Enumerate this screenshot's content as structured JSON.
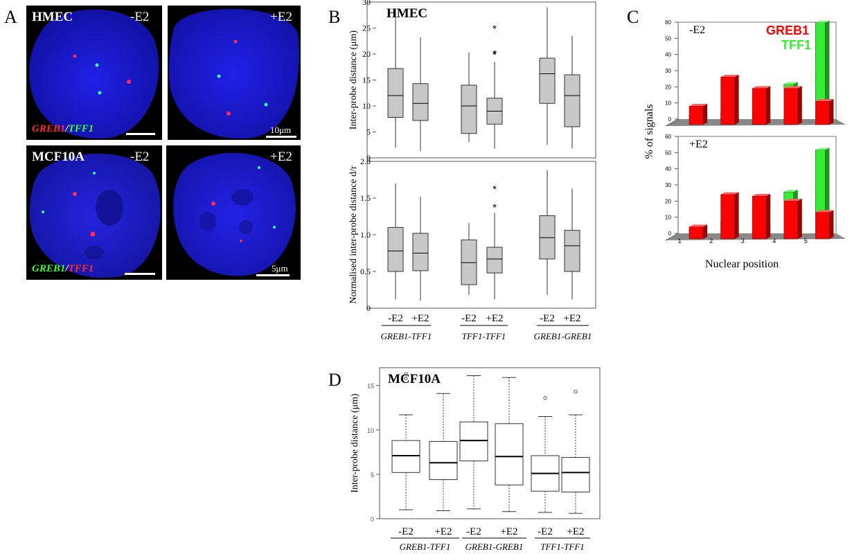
{
  "panel_letters": {
    "a": "A",
    "b": "B",
    "c": "C",
    "d": "D"
  },
  "panel_a": {
    "images": [
      {
        "cell": "HMEC",
        "condition": "-E2",
        "probe_first": "GREB1",
        "probe_sep": "/",
        "probe_second": "TFF1",
        "scale": ""
      },
      {
        "cell": "",
        "condition": "+E2",
        "probe_first": "",
        "probe_sep": "",
        "probe_second": "",
        "scale": "10μm"
      },
      {
        "cell": "MCF10A",
        "condition": "-E2",
        "probe_first": "GREB1",
        "probe_sep": "/",
        "probe_second": "TFF1",
        "scale": ""
      },
      {
        "cell": "",
        "condition": "+E2",
        "probe_first": "",
        "probe_sep": "",
        "probe_second": "",
        "scale": "5μm"
      }
    ],
    "colors": {
      "nucleus": "#1a1ad8",
      "red": "#ff2a55",
      "green": "#33ff99"
    }
  },
  "chart_data": [
    {
      "id": "B-top",
      "type": "boxplot",
      "title": "HMEC",
      "ylabel": "Inter-probe distance (μm)",
      "ylim": [
        0,
        30
      ],
      "yticks": [
        0,
        5,
        10,
        15,
        20,
        25,
        30
      ],
      "box_color": "#c8c8c8",
      "boxes": [
        {
          "label": "-E2",
          "group": "GREB1-TFF1",
          "min": 2,
          "q1": 7.8,
          "median": 12,
          "q3": 17.2,
          "max": 28.5,
          "outliers": []
        },
        {
          "label": "+E2",
          "group": "GREB1-TFF1",
          "min": 1.3,
          "q1": 7.2,
          "median": 10.5,
          "q3": 14.3,
          "max": 23.2,
          "outliers": []
        },
        {
          "label": "-E2",
          "group": "TFF1-TFF1",
          "min": 3,
          "q1": 4.7,
          "median": 10,
          "q3": 14,
          "max": 20.3,
          "outliers": []
        },
        {
          "label": "+E2",
          "group": "TFF1-TFF1",
          "min": 1.8,
          "q1": 6.5,
          "median": 9,
          "q3": 11.5,
          "max": 18.5,
          "outliers": [
            20,
            20.2,
            25
          ]
        },
        {
          "label": "-E2",
          "group": "GREB1-GREB1",
          "min": 2.5,
          "q1": 10.5,
          "median": 16.2,
          "q3": 19.2,
          "max": 29,
          "outliers": []
        },
        {
          "label": "+E2",
          "group": "GREB1-GREB1",
          "min": 1.8,
          "q1": 6,
          "median": 12,
          "q3": 16,
          "max": 23.5,
          "outliers": []
        }
      ]
    },
    {
      "id": "B-bottom",
      "type": "boxplot",
      "title": "",
      "ylabel": "Normalised inter-probe distance d/r",
      "ylim": [
        0,
        2.0
      ],
      "yticks": [
        0,
        0.5,
        1.0,
        1.5,
        2.0
      ],
      "ytick_labels": [
        "0",
        "0.5",
        "1.0",
        "1.5",
        "2.0"
      ],
      "box_color": "#c8c8c8",
      "xlabels": [
        "-E2",
        "+E2",
        "-E2",
        "+E2",
        "-E2",
        "+E2"
      ],
      "groups": [
        "GREB1-TFF1",
        "TFF1-TFF1",
        "GREB1-GREB1"
      ],
      "boxes": [
        {
          "min": 0.12,
          "q1": 0.5,
          "median": 0.78,
          "q3": 1.1,
          "max": 1.7,
          "outliers": []
        },
        {
          "min": 0.1,
          "q1": 0.51,
          "median": 0.75,
          "q3": 1.02,
          "max": 1.52,
          "outliers": []
        },
        {
          "min": 0.18,
          "q1": 0.32,
          "median": 0.62,
          "q3": 0.93,
          "max": 1.16,
          "outliers": []
        },
        {
          "min": 0.12,
          "q1": 0.48,
          "median": 0.67,
          "q3": 0.83,
          "max": 1.3,
          "outliers": [
            1.38,
            1.63
          ]
        },
        {
          "min": 0.18,
          "q1": 0.67,
          "median": 0.96,
          "q3": 1.26,
          "max": 1.88,
          "outliers": []
        },
        {
          "min": 0.12,
          "q1": 0.5,
          "median": 0.85,
          "q3": 1.06,
          "max": 1.63,
          "outliers": []
        }
      ]
    },
    {
      "id": "C",
      "type": "bar3d",
      "ylabel": "% of signals",
      "xlabel": "Nuclear position",
      "categories": [
        "1",
        "2",
        "3",
        "4",
        "5"
      ],
      "ylim": [
        0,
        60
      ],
      "yticks": [
        0,
        10,
        20,
        30,
        40,
        50,
        60
      ],
      "legend": [
        "GREB1",
        "TFF1"
      ],
      "legend_colors": [
        "#ff0000",
        "#33ee33"
      ],
      "legend_position": "top-right",
      "subplots": [
        {
          "label": "-E2",
          "series": [
            {
              "name": "GREB1",
              "values": [
                9,
                27,
                20,
                20,
                12
              ]
            },
            {
              "name": "TFF1",
              "values": [
                1,
                3,
                15,
                20,
                58
              ]
            }
          ]
        },
        {
          "label": "+E2",
          "series": [
            {
              "name": "GREB1",
              "values": [
                5,
                25,
                24,
                21,
                14
              ]
            },
            {
              "name": "TFF1",
              "values": [
                1,
                5,
                16,
                24,
                50
              ]
            }
          ]
        }
      ]
    },
    {
      "id": "D",
      "type": "boxplot",
      "title": "MCF10A",
      "ylabel": "Inter-probe distance (μm)",
      "ylim": [
        0,
        17
      ],
      "yticks": [
        0,
        5,
        10,
        15
      ],
      "box_color": "#ffffff",
      "xlabels": [
        "-E2",
        "+E2",
        "-E2",
        "+E2",
        "-E2",
        "+E2"
      ],
      "groups": [
        "GREB1-TFF1",
        "GREB1-GREB1",
        "TFF1-TFF1"
      ],
      "boxes": [
        {
          "min": 1,
          "q1": 5.2,
          "median": 7.1,
          "q3": 8.8,
          "max": 11.7,
          "outliers": [
            15.8,
            16.3
          ]
        },
        {
          "min": 0.9,
          "q1": 4.4,
          "median": 6.3,
          "q3": 8.7,
          "max": 14.1,
          "outliers": []
        },
        {
          "min": 1.1,
          "q1": 6.5,
          "median": 8.8,
          "q3": 10.9,
          "max": 16.1,
          "outliers": []
        },
        {
          "min": 0.8,
          "q1": 3.8,
          "median": 7,
          "q3": 10.7,
          "max": 15.9,
          "outliers": []
        },
        {
          "min": 0.7,
          "q1": 3.1,
          "median": 5.1,
          "q3": 7.1,
          "max": 11.5,
          "outliers": [
            13.6
          ]
        },
        {
          "min": 0.6,
          "q1": 3,
          "median": 5.2,
          "q3": 6.9,
          "max": 11.7,
          "outliers": [
            14.3
          ]
        }
      ]
    }
  ]
}
